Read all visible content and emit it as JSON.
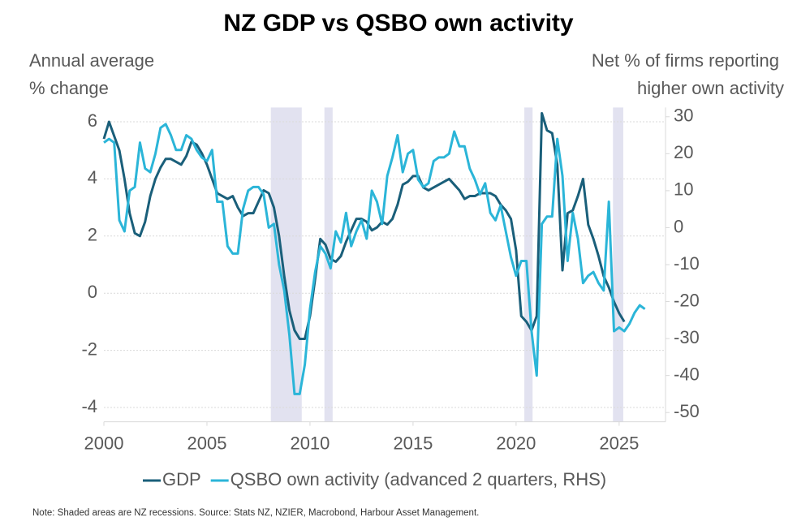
{
  "chart_data": {
    "type": "line",
    "title": "NZ GDP vs QSBO own activity",
    "ylabel": [
      "Annual average",
      "% change"
    ],
    "y2label": [
      "Net % of firms reporting",
      "higher own activity"
    ],
    "note": "Note: Shaded areas are NZ recessions.  Source: Stats NZ, NZIER, Macrobond, Harbour Asset Management.",
    "x": [
      2000,
      2000.25,
      2000.5,
      2000.75,
      2001,
      2001.25,
      2001.5,
      2001.75,
      2002,
      2002.25,
      2002.5,
      2002.75,
      2003,
      2003.25,
      2003.5,
      2003.75,
      2004,
      2004.25,
      2004.5,
      2004.75,
      2005,
      2005.25,
      2005.5,
      2005.75,
      2006,
      2006.25,
      2006.5,
      2006.75,
      2007,
      2007.25,
      2007.5,
      2007.75,
      2008,
      2008.25,
      2008.5,
      2008.75,
      2009,
      2009.25,
      2009.5,
      2009.75,
      2010,
      2010.25,
      2010.5,
      2010.75,
      2011,
      2011.25,
      2011.5,
      2011.75,
      2012,
      2012.25,
      2012.5,
      2012.75,
      2013,
      2013.25,
      2013.5,
      2013.75,
      2014,
      2014.25,
      2014.5,
      2014.75,
      2015,
      2015.25,
      2015.5,
      2015.75,
      2016,
      2016.25,
      2016.5,
      2016.75,
      2017,
      2017.25,
      2017.5,
      2017.75,
      2018,
      2018.25,
      2018.5,
      2018.75,
      2019,
      2019.25,
      2019.5,
      2019.75,
      2020,
      2020.25,
      2020.5,
      2020.75,
      2021,
      2021.25,
      2021.5,
      2021.75,
      2022,
      2022.25,
      2022.5,
      2022.75,
      2023,
      2023.25,
      2023.5,
      2023.75,
      2024,
      2024.25,
      2024.5,
      2024.75,
      2025,
      2025.25,
      2025.5,
      2025.75,
      2026,
      2026.25
    ],
    "series": [
      {
        "name": "GDP",
        "color": "#1a5f7a",
        "values": [
          5.4,
          6.0,
          5.5,
          5.0,
          4.0,
          2.8,
          2.1,
          2.0,
          2.5,
          3.4,
          4.0,
          4.4,
          4.7,
          4.7,
          4.6,
          4.5,
          4.8,
          5.3,
          5.2,
          4.9,
          4.5,
          4.0,
          3.5,
          3.4,
          3.3,
          3.4,
          3.0,
          2.7,
          2.8,
          2.8,
          3.2,
          3.6,
          3.5,
          3.0,
          2.0,
          0.6,
          -0.6,
          -1.3,
          -1.6,
          -1.6,
          -0.8,
          0.5,
          1.9,
          1.7,
          1.2,
          1.1,
          1.3,
          1.8,
          2.2,
          2.6,
          2.6,
          2.5,
          2.2,
          2.3,
          2.5,
          2.4,
          2.6,
          3.1,
          3.8,
          3.9,
          4.1,
          4.1,
          3.7,
          3.6,
          3.7,
          3.8,
          3.9,
          4.0,
          3.8,
          3.6,
          3.3,
          3.4,
          3.4,
          3.5,
          3.5,
          3.5,
          3.4,
          3.1,
          2.9,
          2.6,
          1.5,
          -0.8,
          -1.0,
          -1.3,
          -0.8,
          6.3,
          5.7,
          5.6,
          4.5,
          0.8,
          2.8,
          2.9,
          3.4,
          4.0,
          2.4,
          1.9,
          1.3,
          0.6,
          0.2,
          -0.3,
          -0.7,
          -1.0,
          null,
          null,
          null,
          null
        ]
      },
      {
        "name": "QSBO own activity (advanced 2 quarters, RHS)",
        "color": "#2bb5d8",
        "axis": "y2",
        "values": [
          23,
          24,
          23,
          2,
          -1,
          10,
          11,
          23,
          16,
          15,
          20,
          27,
          28,
          25,
          21,
          21,
          25,
          24,
          21,
          19,
          18,
          21,
          7,
          7,
          -5,
          -7,
          -7,
          5,
          10,
          11,
          11,
          9,
          0,
          1,
          -10,
          -17,
          -29,
          -45,
          -45,
          -37,
          -22,
          -12,
          -5,
          -7,
          -11,
          -1,
          -4,
          4,
          -5,
          -1,
          2,
          -3,
          10,
          7,
          1,
          14,
          19,
          25,
          15,
          20,
          21,
          13,
          11,
          12,
          18,
          19,
          19,
          20,
          26,
          22,
          22,
          16,
          13,
          9,
          12,
          4,
          2,
          6,
          -1,
          -8,
          -13,
          -9,
          -9,
          -28,
          -40,
          1,
          3,
          3,
          24,
          14,
          -9,
          4,
          -3,
          -15,
          -13,
          -12,
          -15,
          -17,
          7,
          -28,
          -27,
          -28,
          -26,
          -23,
          -21,
          -22
        ]
      }
    ],
    "recessions": [
      [
        2008.1,
        2009.6
      ],
      [
        2010.7,
        2011.1
      ],
      [
        2020.4,
        2020.8
      ],
      [
        2024.7,
        2025.2
      ]
    ],
    "recession_color": "#e2e2f0",
    "xlim": [
      2000,
      2027.25
    ],
    "xticks": [
      2000,
      2005,
      2010,
      2015,
      2020,
      2025
    ],
    "ylim": [
      -4.5,
      6.5
    ],
    "yticks": [
      -4,
      -2,
      0,
      2,
      4,
      6
    ],
    "y2lim": [
      -52.5,
      32.5
    ],
    "y2ticks": [
      -50,
      -40,
      -30,
      -20,
      -10,
      0,
      10,
      20,
      30
    ],
    "grid": true
  }
}
